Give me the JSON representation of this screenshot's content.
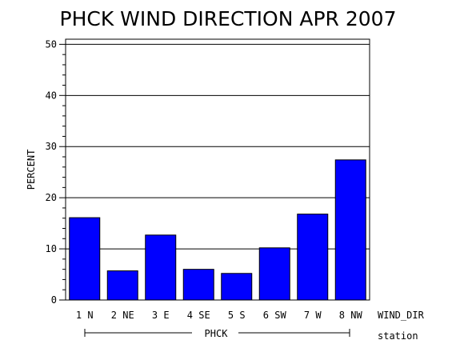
{
  "chart_data": {
    "type": "bar",
    "title": "PHCK WIND DIRECTION APR 2007",
    "ylabel": "PERCENT",
    "xlabel": "WIND_DIR",
    "group_axis_label": "station",
    "group_name": "PHCK",
    "categories": [
      "1 N",
      "2 NE",
      "3 E",
      "4 SE",
      "5 S",
      "6 SW",
      "7 W",
      "8 NW"
    ],
    "values": [
      16.1,
      5.7,
      12.7,
      6.0,
      5.2,
      10.2,
      16.8,
      27.4
    ],
    "ylim": [
      0,
      51
    ],
    "yticks": [
      0,
      10,
      20,
      30,
      40,
      50
    ],
    "grid": true,
    "bar_color": "#0000ff"
  }
}
